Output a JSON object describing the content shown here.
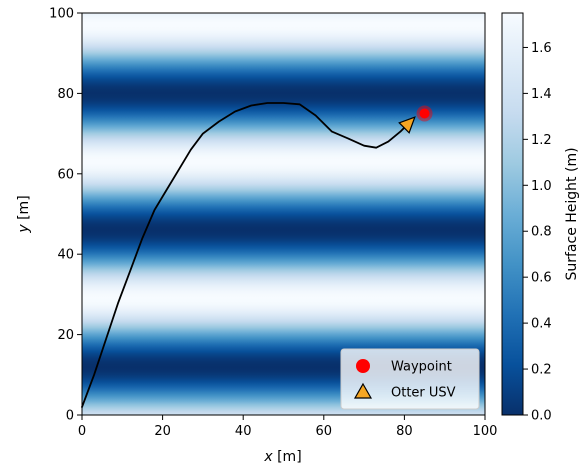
{
  "chart_data": {
    "type": "heatmap",
    "xlabel": "x [m]",
    "ylabel": "y [m]",
    "xlim": [
      0,
      100
    ],
    "ylim": [
      0,
      100
    ],
    "x_ticks": [
      0,
      20,
      40,
      60,
      80,
      100
    ],
    "y_ticks": [
      0,
      20,
      40,
      60,
      80,
      100
    ],
    "colorbar": {
      "label": "Surface Height (m)",
      "range": [
        0.0,
        1.75
      ],
      "ticks": [
        "0.0",
        "0.2",
        "0.4",
        "0.6",
        "0.8",
        "1.0",
        "1.2",
        "1.4",
        "1.6"
      ],
      "colormap": [
        "#08306b",
        "#08519c",
        "#2171b5",
        "#4292c6",
        "#6baed6",
        "#9ecae1",
        "#c6dbef",
        "#deebf7",
        "#f7fbff"
      ]
    },
    "surface": {
      "description_axis": "y",
      "period_m": 34,
      "minimum_y": [
        12,
        46,
        80
      ]
    },
    "series": [
      {
        "type": "line",
        "color": "#000000",
        "x": [
          0,
          3,
          6,
          9,
          12,
          15,
          18,
          21,
          24,
          27,
          30,
          34,
          38,
          42,
          46,
          50,
          54,
          58,
          62,
          66,
          70,
          73,
          76,
          79,
          81
        ],
        "y": [
          2,
          10,
          19,
          28,
          36,
          44,
          51,
          56,
          61,
          66,
          70,
          73,
          75.5,
          77,
          77.6,
          77.6,
          77.3,
          74.5,
          70.5,
          68.8,
          67,
          66.5,
          68,
          70.5,
          72.5
        ]
      }
    ],
    "waypoint": {
      "x": 85,
      "y": 75,
      "color": "#ff0000"
    },
    "vessel": {
      "x": 81,
      "y": 72.5,
      "heading_deg": 45,
      "color": "#f5a623"
    },
    "legend": {
      "position": "lower-right",
      "entries": [
        {
          "label": "Waypoint",
          "marker": "circle",
          "color": "#ff0000"
        },
        {
          "label": "Otter USV",
          "marker": "triangle",
          "color": "#f5a623"
        }
      ]
    }
  }
}
